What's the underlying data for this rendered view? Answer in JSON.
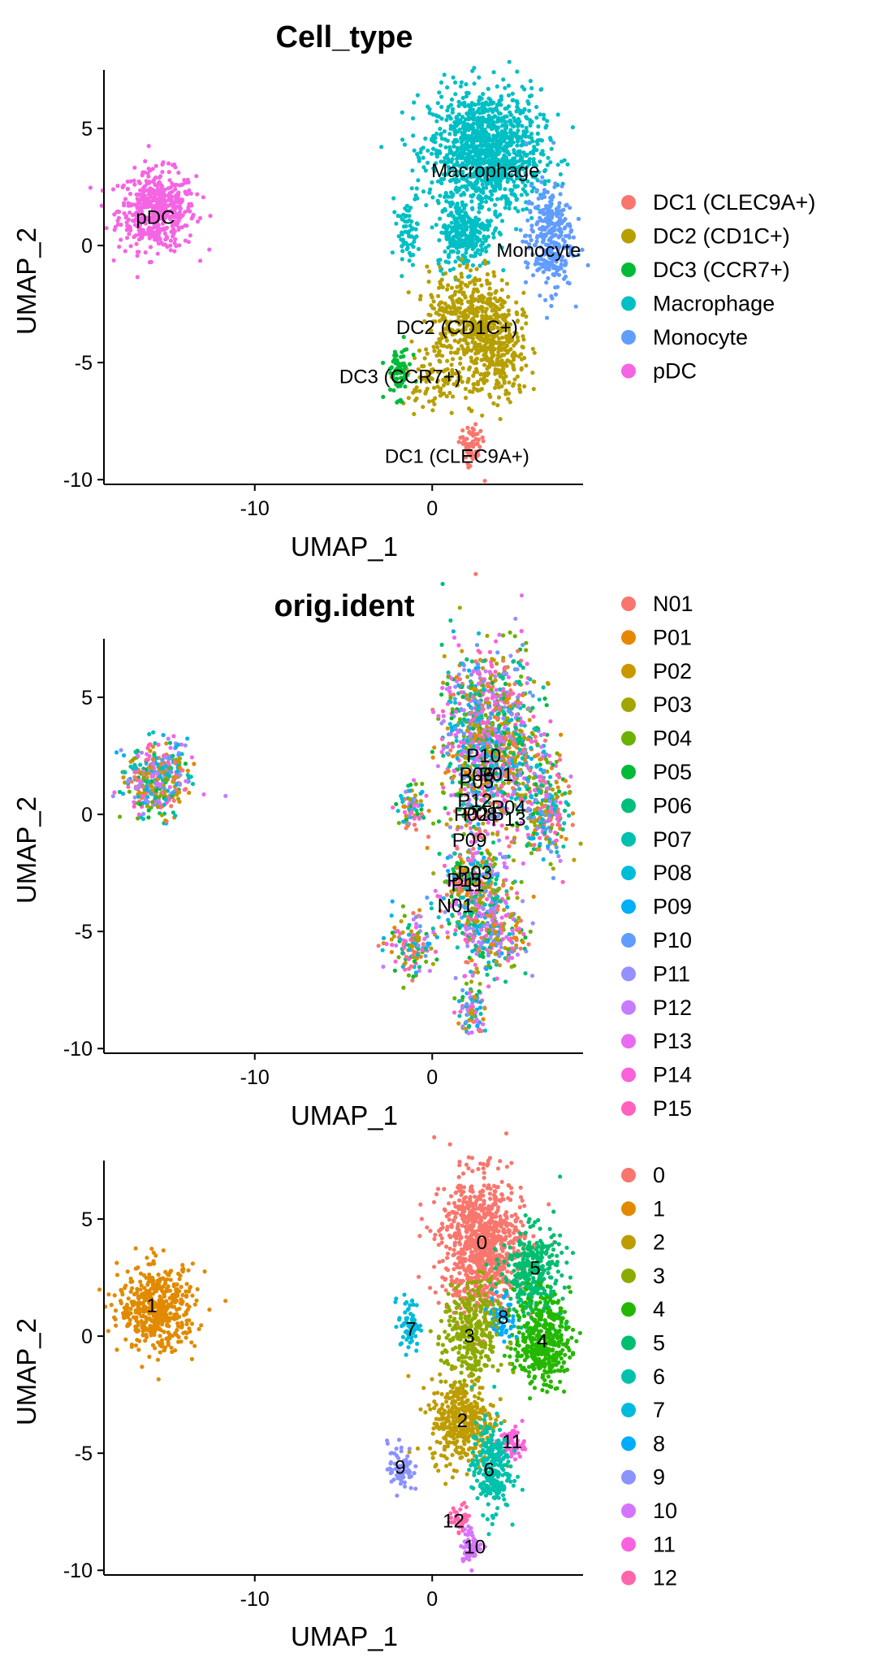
{
  "chart_data": [
    {
      "type": "scatter",
      "title": "Cell_type",
      "xlabel": "UMAP_1",
      "ylabel": "UMAP_2",
      "xlim": [
        -18.5,
        8.5
      ],
      "ylim": [
        -10.2,
        7.5
      ],
      "xticks": [
        -10,
        0
      ],
      "yticks": [
        5,
        0,
        -5,
        -10
      ],
      "legend": [
        {
          "name": "DC1 (CLEC9A+)",
          "color": "#F8766D"
        },
        {
          "name": "DC2 (CD1C+)",
          "color": "#B79F00"
        },
        {
          "name": "DC3 (CCR7+)",
          "color": "#00BA38"
        },
        {
          "name": "Macrophage",
          "color": "#00BFC4"
        },
        {
          "name": "Monocyte",
          "color": "#619CFF"
        },
        {
          "name": "pDC",
          "color": "#F564E3"
        }
      ],
      "labels": [
        {
          "text": "pDC",
          "x": -15.6,
          "y": 1.2
        },
        {
          "text": "Macrophage",
          "x": 3.0,
          "y": 3.2
        },
        {
          "text": "Monocyte",
          "x": 6.0,
          "y": -0.2
        },
        {
          "text": "DC2 (CD1C+)",
          "x": 1.4,
          "y": -3.5
        },
        {
          "text": "DC3 (CCR7+)",
          "x": -1.8,
          "y": -5.6
        },
        {
          "text": "DC1 (CLEC9A+)",
          "x": 1.4,
          "y": -9.0
        }
      ],
      "clusters": [
        {
          "color": "#F564E3",
          "cx": -15.5,
          "cy": 1.5,
          "rx": 1.8,
          "ry": 1.4,
          "n": 500
        },
        {
          "color": "#00BFC4",
          "cx": 3.0,
          "cy": 4.0,
          "rx": 2.6,
          "ry": 2.2,
          "n": 1200
        },
        {
          "color": "#00BFC4",
          "cx": 1.8,
          "cy": 0.5,
          "rx": 1.3,
          "ry": 1.2,
          "n": 260
        },
        {
          "color": "#00BFC4",
          "cx": -1.4,
          "cy": 0.5,
          "rx": 0.5,
          "ry": 1.0,
          "n": 60
        },
        {
          "color": "#619CFF",
          "cx": 6.6,
          "cy": 0.3,
          "rx": 1.1,
          "ry": 1.9,
          "n": 300
        },
        {
          "color": "#B79F00",
          "cx": 2.2,
          "cy": -2.8,
          "rx": 2.0,
          "ry": 1.5,
          "n": 380
        },
        {
          "color": "#B79F00",
          "cx": 3.5,
          "cy": -4.8,
          "rx": 1.6,
          "ry": 1.6,
          "n": 300
        },
        {
          "color": "#B79F00",
          "cx": 0.4,
          "cy": -5.5,
          "rx": 1.6,
          "ry": 1.2,
          "n": 120
        },
        {
          "color": "#00BA38",
          "cx": -1.9,
          "cy": -5.4,
          "rx": 0.6,
          "ry": 0.9,
          "n": 70
        },
        {
          "color": "#F8766D",
          "cx": 2.2,
          "cy": -8.6,
          "rx": 0.5,
          "ry": 0.8,
          "n": 70
        }
      ]
    },
    {
      "type": "scatter",
      "title": "orig.ident",
      "xlabel": "UMAP_1",
      "ylabel": "UMAP_2",
      "xlim": [
        -18.5,
        8.5
      ],
      "ylim": [
        -10.2,
        7.5
      ],
      "xticks": [
        -10,
        0
      ],
      "yticks": [
        5,
        0,
        -5,
        -10
      ],
      "legend": [
        {
          "name": "N01",
          "color": "#F8766D"
        },
        {
          "name": "P01",
          "color": "#E58700"
        },
        {
          "name": "P02",
          "color": "#C99800"
        },
        {
          "name": "P03",
          "color": "#A3A500"
        },
        {
          "name": "P04",
          "color": "#6BB100"
        },
        {
          "name": "P05",
          "color": "#00BA38"
        },
        {
          "name": "P06",
          "color": "#00BF7D"
        },
        {
          "name": "P07",
          "color": "#00C0AF"
        },
        {
          "name": "P08",
          "color": "#00BCD8"
        },
        {
          "name": "P09",
          "color": "#00B0F6"
        },
        {
          "name": "P10",
          "color": "#619CFF"
        },
        {
          "name": "P11",
          "color": "#9590FF"
        },
        {
          "name": "P12",
          "color": "#C77CFF"
        },
        {
          "name": "P13",
          "color": "#E76BF3"
        },
        {
          "name": "P14",
          "color": "#FA62DB"
        },
        {
          "name": "P15",
          "color": "#FF62BC"
        }
      ],
      "labels": [
        {
          "text": "P10",
          "x": 2.9,
          "y": 2.5
        },
        {
          "text": "P06",
          "x": 2.5,
          "y": 1.7
        },
        {
          "text": "P01",
          "x": 3.6,
          "y": 1.7
        },
        {
          "text": "P05",
          "x": 2.5,
          "y": 1.4
        },
        {
          "text": "P12",
          "x": 2.4,
          "y": 0.6
        },
        {
          "text": "P04",
          "x": 4.3,
          "y": 0.3
        },
        {
          "text": "P02",
          "x": 2.2,
          "y": 0.0
        },
        {
          "text": "P08",
          "x": 2.7,
          "y": 0.0
        },
        {
          "text": "P13",
          "x": 4.3,
          "y": -0.2
        },
        {
          "text": "P09",
          "x": 2.1,
          "y": -1.1
        },
        {
          "text": "P03",
          "x": 2.4,
          "y": -2.5
        },
        {
          "text": "P11",
          "x": 2.0,
          "y": -3.0
        },
        {
          "text": "P15",
          "x": 1.8,
          "y": -2.8
        },
        {
          "text": "N01",
          "x": 1.3,
          "y": -3.9
        }
      ],
      "clusters": [
        {
          "color": "#mixed",
          "cx": -15.5,
          "cy": 1.5,
          "rx": 1.5,
          "ry": 1.3,
          "n": 420
        },
        {
          "color": "#mixed",
          "cx": 3.2,
          "cy": 3.0,
          "rx": 2.2,
          "ry": 3.2,
          "n": 1300
        },
        {
          "color": "#mixed",
          "cx": 6.3,
          "cy": 0.3,
          "rx": 1.2,
          "ry": 1.9,
          "n": 280
        },
        {
          "color": "#mixed",
          "cx": -1.2,
          "cy": 0.2,
          "rx": 0.6,
          "ry": 0.9,
          "n": 80
        },
        {
          "color": "#mixed",
          "cx": 2.4,
          "cy": -3.2,
          "rx": 1.6,
          "ry": 1.5,
          "n": 360
        },
        {
          "color": "#mixed",
          "cx": 3.5,
          "cy": -5.2,
          "rx": 1.5,
          "ry": 1.4,
          "n": 260
        },
        {
          "color": "#mixed",
          "cx": -1.2,
          "cy": -5.6,
          "rx": 1.3,
          "ry": 1.0,
          "n": 140
        },
        {
          "color": "#mixed",
          "cx": 2.2,
          "cy": -8.2,
          "rx": 0.6,
          "ry": 1.1,
          "n": 90
        }
      ]
    },
    {
      "type": "scatter",
      "title": "",
      "xlabel": "UMAP_1",
      "ylabel": "UMAP_2",
      "xlim": [
        -18.5,
        8.5
      ],
      "ylim": [
        -10.2,
        7.5
      ],
      "xticks": [
        -10,
        0
      ],
      "yticks": [
        5,
        0,
        -5,
        -10
      ],
      "legend": [
        {
          "name": "0",
          "color": "#F8766D"
        },
        {
          "name": "1",
          "color": "#E18A00"
        },
        {
          "name": "2",
          "color": "#BE9C00"
        },
        {
          "name": "3",
          "color": "#8CAB00"
        },
        {
          "name": "4",
          "color": "#24B700"
        },
        {
          "name": "5",
          "color": "#00BE70"
        },
        {
          "name": "6",
          "color": "#00C1AB"
        },
        {
          "name": "7",
          "color": "#00BBDA"
        },
        {
          "name": "8",
          "color": "#00ACFC"
        },
        {
          "name": "9",
          "color": "#8B93FF"
        },
        {
          "name": "10",
          "color": "#D575FE"
        },
        {
          "name": "11",
          "color": "#F962DD"
        },
        {
          "name": "12",
          "color": "#FF65AC"
        }
      ],
      "labels": [
        {
          "text": "0",
          "x": 2.8,
          "y": 4.0
        },
        {
          "text": "1",
          "x": -15.8,
          "y": 1.3
        },
        {
          "text": "5",
          "x": 5.8,
          "y": 2.9
        },
        {
          "text": "7",
          "x": -1.2,
          "y": 0.3
        },
        {
          "text": "8",
          "x": 4.0,
          "y": 0.8
        },
        {
          "text": "3",
          "x": 2.1,
          "y": 0.0
        },
        {
          "text": "4",
          "x": 6.2,
          "y": -0.2
        },
        {
          "text": "2",
          "x": 1.7,
          "y": -3.6
        },
        {
          "text": "11",
          "x": 4.5,
          "y": -4.5
        },
        {
          "text": "9",
          "x": -1.8,
          "y": -5.6
        },
        {
          "text": "6",
          "x": 3.2,
          "y": -5.7
        },
        {
          "text": "12",
          "x": 1.2,
          "y": -7.9
        },
        {
          "text": "10",
          "x": 2.4,
          "y": -9.0
        }
      ],
      "clusters": [
        {
          "color": "#E18A00",
          "cx": -15.5,
          "cy": 1.2,
          "rx": 1.8,
          "ry": 1.5,
          "n": 480
        },
        {
          "color": "#F8766D",
          "cx": 2.8,
          "cy": 3.9,
          "rx": 1.9,
          "ry": 2.4,
          "n": 900
        },
        {
          "color": "#00BE70",
          "cx": 5.6,
          "cy": 2.7,
          "rx": 1.4,
          "ry": 1.6,
          "n": 330
        },
        {
          "color": "#24B700",
          "cx": 6.2,
          "cy": -0.2,
          "rx": 1.3,
          "ry": 1.6,
          "n": 380
        },
        {
          "color": "#00ACFC",
          "cx": 3.9,
          "cy": 0.8,
          "rx": 0.6,
          "ry": 0.8,
          "n": 70
        },
        {
          "color": "#8CAB00",
          "cx": 2.2,
          "cy": 0.0,
          "rx": 1.3,
          "ry": 1.9,
          "n": 330
        },
        {
          "color": "#00BBDA",
          "cx": -1.3,
          "cy": 0.5,
          "rx": 0.5,
          "ry": 1.0,
          "n": 70
        },
        {
          "color": "#BE9C00",
          "cx": 1.7,
          "cy": -3.6,
          "rx": 1.5,
          "ry": 1.5,
          "n": 380
        },
        {
          "color": "#F962DD",
          "cx": 4.5,
          "cy": -4.6,
          "rx": 0.6,
          "ry": 0.6,
          "n": 60
        },
        {
          "color": "#00C1AB",
          "cx": 3.3,
          "cy": -5.6,
          "rx": 0.9,
          "ry": 1.6,
          "n": 260
        },
        {
          "color": "#8B93FF",
          "cx": -1.8,
          "cy": -5.6,
          "rx": 0.6,
          "ry": 0.9,
          "n": 70
        },
        {
          "color": "#FF65AC",
          "cx": 1.6,
          "cy": -7.8,
          "rx": 0.5,
          "ry": 0.5,
          "n": 40
        },
        {
          "color": "#D575FE",
          "cx": 2.2,
          "cy": -8.9,
          "rx": 0.5,
          "ry": 0.6,
          "n": 60
        }
      ]
    }
  ]
}
